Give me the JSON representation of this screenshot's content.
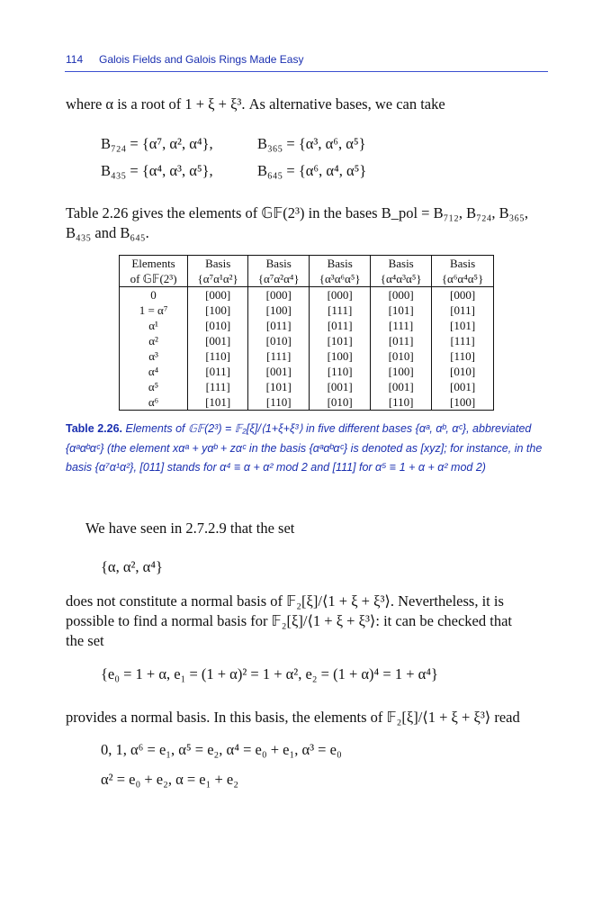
{
  "header": {
    "page_number": "114",
    "running_title": "Galois Fields and Galois Rings Made Easy"
  },
  "body": {
    "p1": "where α is a root of 1 + ξ + ξ³. As alternative bases, we can take",
    "eq1a": "B₇₂₄ = {α⁷, α², α⁴},",
    "eq1b": "B₃₆₅ = {α³, α⁶, α⁵}",
    "eq2a": "B₄₃₅ = {α⁴, α³, α⁵},",
    "eq2b": "B₆₄₅ = {α⁶, α⁴, α⁵}",
    "p2_line1": "Table 2.26 gives the elements of 𝔾𝔽(2³) in the bases B_pol = B₇₁₂, B₇₂₄, B₃₆₅,",
    "p2_line2": "B₄₃₅ and B₆₄₅.",
    "p3": "We have seen in 2.7.2.9 that the set",
    "set1": "{α, α², α⁴}",
    "p4_line1": "does not constitute a normal basis of 𝔽₂[ξ]/⟨1 + ξ + ξ³⟩. Nevertheless, it is",
    "p4_line2": "possible to find a normal basis for 𝔽₂[ξ]/⟨1 + ξ + ξ³⟩: it can be checked that",
    "p4_line3": "the set",
    "set2": "{e₀ = 1 + α,  e₁ = (1 + α)² = 1 + α²,  e₂ = (1 + α)⁴ = 1 + α⁴}",
    "p5": "provides a normal basis. In this basis, the elements of 𝔽₂[ξ]/⟨1 + ξ + ξ³⟩ read",
    "eq3": "0,  1,  α⁶ = e₁,  α⁵ = e₂,  α⁴ = e₀ + e₁,  α³ = e₀",
    "eq4": "α² = e₀ + e₂,  α = e₁ + e₂"
  },
  "table": {
    "headers_top": [
      "Elements",
      "Basis",
      "Basis",
      "Basis",
      "Basis",
      "Basis"
    ],
    "headers_bottom": [
      "of 𝔾𝔽(2³)",
      "{α⁷α¹α²}",
      "{α⁷α²α⁴}",
      "{α³α⁶α⁵}",
      "{α⁴α³α⁵}",
      "{α⁶α⁴α⁵}"
    ],
    "rows": [
      [
        "0",
        "[000]",
        "[000]",
        "[000]",
        "[000]",
        "[000]"
      ],
      [
        "1 = α⁷",
        "[100]",
        "[100]",
        "[111]",
        "[101]",
        "[011]"
      ],
      [
        "α¹",
        "[010]",
        "[011]",
        "[011]",
        "[111]",
        "[101]"
      ],
      [
        "α²",
        "[001]",
        "[010]",
        "[101]",
        "[011]",
        "[111]"
      ],
      [
        "α³",
        "[110]",
        "[111]",
        "[100]",
        "[010]",
        "[110]"
      ],
      [
        "α⁴",
        "[011]",
        "[001]",
        "[110]",
        "[100]",
        "[010]"
      ],
      [
        "α⁵",
        "[111]",
        "[101]",
        "[001]",
        "[001]",
        "[001]"
      ],
      [
        "α⁶",
        "[101]",
        "[110]",
        "[010]",
        "[110]",
        "[100]"
      ]
    ]
  },
  "caption": {
    "label": "Table 2.26.",
    "text": "Elements of 𝔾𝔽(2³) = 𝔽₂[ξ]/⟨1+ξ+ξ³⟩ in five different bases {αᵃ, αᵇ, αᶜ}, abbreviated {αᵃαᵇαᶜ} (the element xαᵃ + yαᵇ + zαᶜ in the basis {αᵃαᵇαᶜ} is denoted as [xyz]; for instance, in the basis {α⁷α¹α²}, [011] stands for α⁴ ≡ α + α² mod 2 and [111] for α⁵ ≡ 1 + α + α² mod 2)"
  },
  "colors": {
    "header_blue": "#1a2fb0"
  }
}
